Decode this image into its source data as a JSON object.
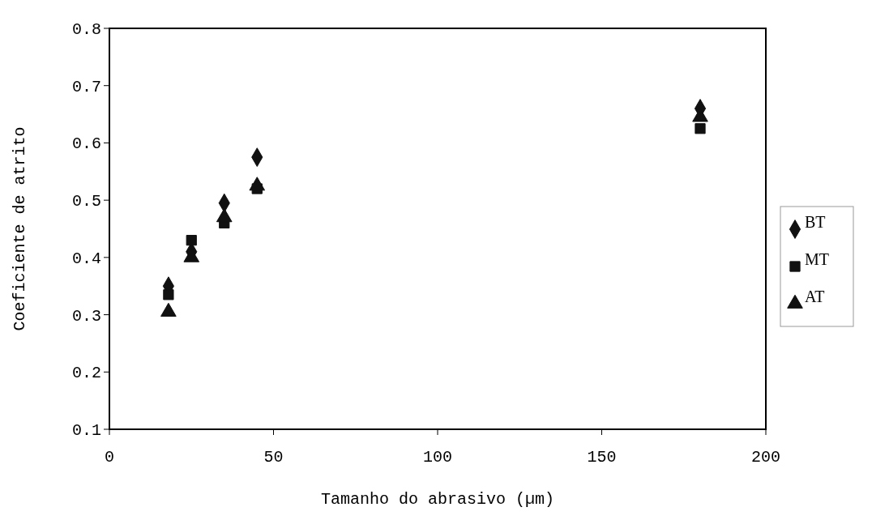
{
  "chart_data": {
    "type": "scatter",
    "xlabel": "Tamanho do abrasivo (µm)",
    "ylabel": "Coeficiente de atrito",
    "x": [
      18,
      25,
      35,
      45,
      180
    ],
    "series": [
      {
        "name": "BT",
        "color": "#111111",
        "marker": "diamond",
        "values": [
          0.35,
          0.41,
          0.495,
          0.575,
          0.66
        ]
      },
      {
        "name": "MT",
        "color": "#111111",
        "marker": "square",
        "values": [
          0.335,
          0.43,
          0.46,
          0.52,
          0.625
        ]
      },
      {
        "name": "AT",
        "color": "#111111",
        "marker": "triangle",
        "values": [
          0.305,
          0.4,
          0.47,
          0.525,
          0.645
        ]
      }
    ],
    "xlim": [
      0,
      200
    ],
    "xticks": [
      0,
      50,
      100,
      150,
      200
    ],
    "ylim": [
      0.1,
      0.8
    ],
    "yticks": [
      {
        "value": 0.1,
        "label": "0.1"
      },
      {
        "value": 0.2,
        "label": "0.2"
      },
      {
        "value": 0.3,
        "label": "0.3"
      },
      {
        "value": 0.4,
        "label": "0.4"
      },
      {
        "value": 0.5,
        "label": "0.5"
      },
      {
        "value": 0.6,
        "label": "0.6"
      },
      {
        "value": 0.7,
        "label": "0.7"
      },
      {
        "value": 0.8,
        "label": "0.8"
      }
    ],
    "legend": "right",
    "grid": false
  }
}
